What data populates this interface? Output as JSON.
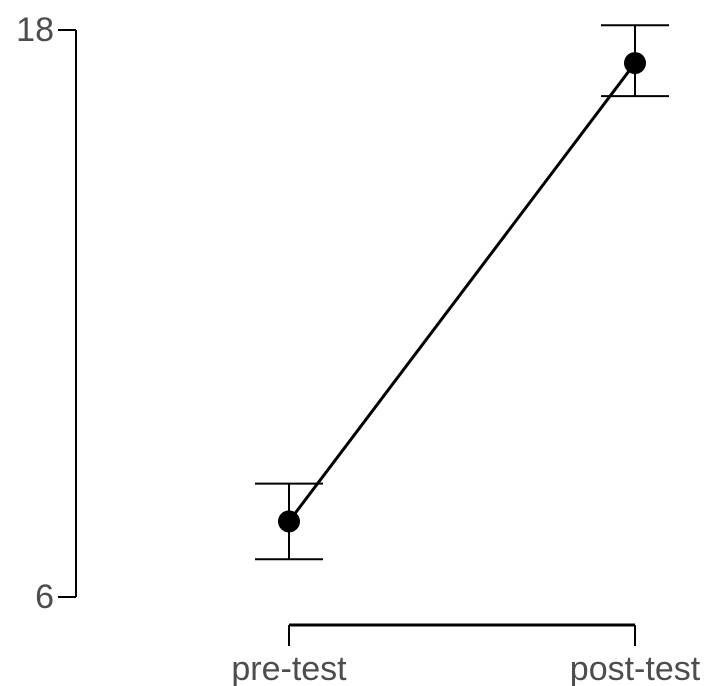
{
  "chart_data": {
    "type": "line",
    "title": "",
    "xlabel": "",
    "ylabel": "",
    "categories": [
      "pre-test",
      "post-test"
    ],
    "series": [
      {
        "values": [
          7.6,
          17.3
        ],
        "error_low": [
          6.8,
          16.6
        ],
        "error_high": [
          8.4,
          18.1
        ],
        "color": "#000000"
      }
    ],
    "ylim": [
      6,
      18
    ],
    "y_ticks": [
      6,
      18
    ],
    "y_tick_labels": [
      "6",
      "18"
    ],
    "grid": false,
    "legend": "none",
    "axis_color": "#000000",
    "label_color": "#4d4d4d"
  }
}
